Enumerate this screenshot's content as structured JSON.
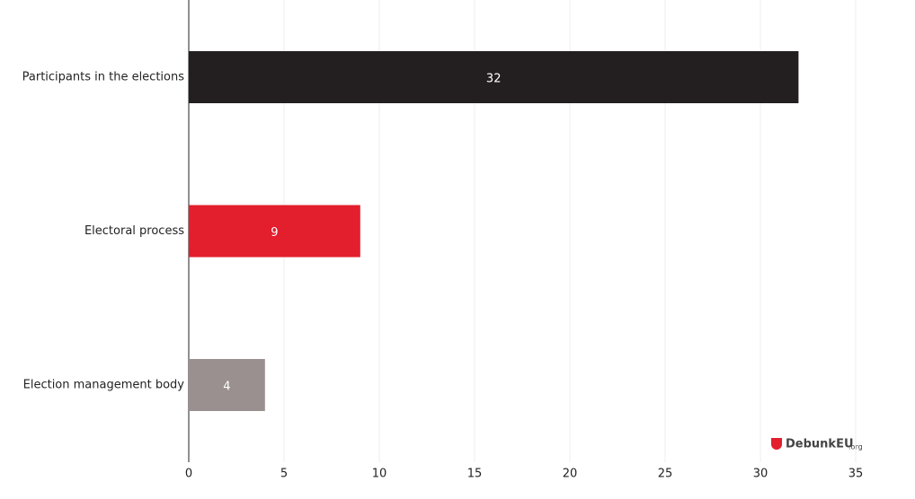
{
  "chart_data": {
    "type": "hbar",
    "categories": [
      "Participants in the elections",
      "Electoral process",
      "Election management body"
    ],
    "values": [
      32,
      9,
      4
    ],
    "colors": [
      "#231f20",
      "#e31e2d",
      "#9a9090"
    ],
    "xlim": [
      0,
      35
    ],
    "xticks": [
      0,
      5,
      10,
      15,
      20,
      25,
      30,
      35
    ],
    "grid": true
  },
  "logo": {
    "name": "DebunkEU",
    "suffix": ".org"
  }
}
